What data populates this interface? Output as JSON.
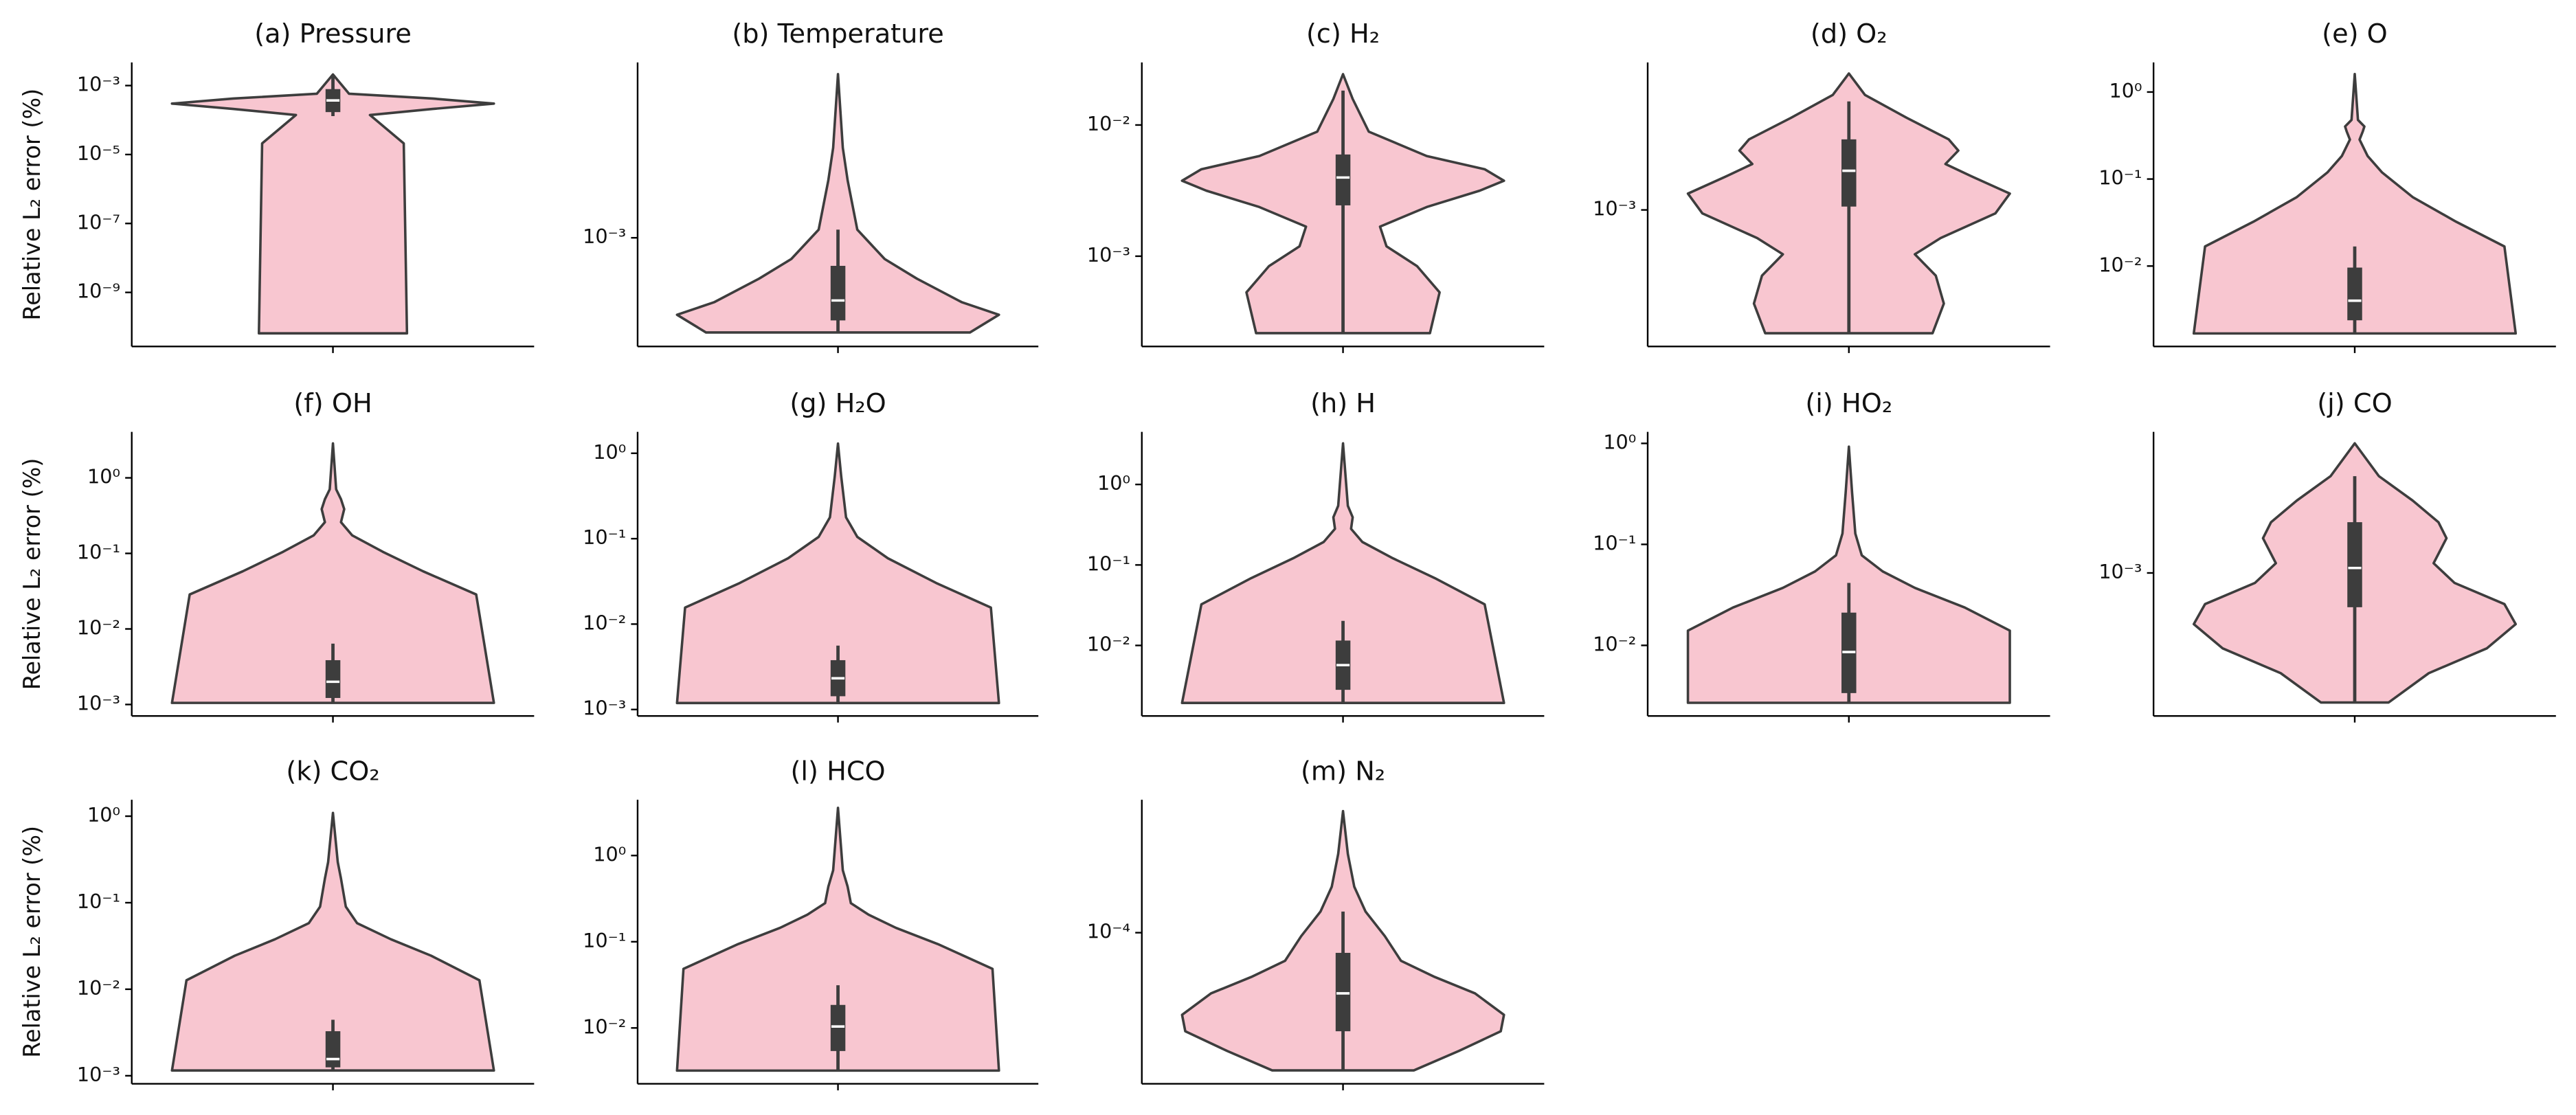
{
  "chart_data": [
    {
      "type": "violin",
      "title": "(a) Pressure",
      "ylabel": "Relative L₂ error (%)",
      "yscale": "log",
      "ylim": [
        2.7e-11,
        0.0047
      ],
      "yticks": [
        {
          "value": 1e-09,
          "label": "10⁻⁹"
        },
        {
          "value": 1e-07,
          "label": "10⁻⁷"
        },
        {
          "value": 1e-05,
          "label": "10⁻⁵"
        },
        {
          "value": 0.001,
          "label": "10⁻³"
        }
      ],
      "color": "#f8c6d0",
      "line_color": "#3d3d3d",
      "violin": {
        "y": [
          6.5e-11,
          2.1e-05,
          0.00014,
          0.00021,
          0.0003,
          0.00042,
          0.00058,
          0.0021
        ],
        "width": [
          0.46,
          0.44,
          0.23,
          0.62,
          1,
          0.62,
          0.1,
          0
        ]
      },
      "box": {
        "q1": 0.00017,
        "median": 0.00037,
        "q3": 0.00079
      },
      "whisker": [
        0.00013,
        0.0021
      ]
    },
    {
      "type": "violin",
      "title": "(b) Temperature",
      "yscale": "log",
      "ylim": [
        0.00028,
        0.0078
      ],
      "yticks": [
        {
          "value": 0.001,
          "label": "10⁻³"
        }
      ],
      "color": "#f8c6d0",
      "line_color": "#3d3d3d",
      "violin": {
        "y": [
          0.00033,
          0.000406,
          0.00047,
          0.00062,
          0.00078,
          0.0011,
          0.00196,
          0.00287,
          0.0068
        ],
        "width": [
          0.82,
          1,
          0.77,
          0.49,
          0.29,
          0.12,
          0.06,
          0.03,
          0
        ]
      },
      "box": {
        "q1": 0.00038,
        "median": 0.00048,
        "q3": 0.00072
      },
      "whisker": [
        0.00033,
        0.0011
      ]
    },
    {
      "type": "violin",
      "title": "(c) H₂",
      "yscale": "log",
      "ylim": [
        0.000205,
        0.03
      ],
      "yticks": [
        {
          "value": 0.001,
          "label": "10⁻³"
        },
        {
          "value": 0.01,
          "label": "10⁻²"
        }
      ],
      "color": "#f8c6d0",
      "line_color": "#3d3d3d",
      "violin": {
        "y": [
          0.000259,
          0.00053,
          0.00084,
          0.00119,
          0.00168,
          0.00237,
          0.00316,
          0.00376,
          0.0046,
          0.0058,
          0.0089,
          0.0158,
          0.0244
        ],
        "width": [
          0.54,
          0.6,
          0.46,
          0.27,
          0.23,
          0.52,
          0.85,
          1,
          0.88,
          0.52,
          0.16,
          0.06,
          0
        ]
      },
      "box": {
        "q1": 0.00244,
        "median": 0.00398,
        "q3": 0.00596
      },
      "whisker": [
        0.000259,
        0.0183
      ]
    },
    {
      "type": "violin",
      "title": "(d) O₂",
      "yscale": "log",
      "ylim": [
        0.000203,
        0.0056
      ],
      "yticks": [
        {
          "value": 0.001,
          "label": "10⁻³"
        }
      ],
      "color": "#f8c6d0",
      "line_color": "#3d3d3d",
      "violin": {
        "y": [
          0.000237,
          0.000335,
          0.000464,
          0.000596,
          0.00072,
          0.00096,
          0.00121,
          0.00147,
          0.00171,
          0.002,
          0.00228,
          0.00293,
          0.00383,
          0.00492
        ],
        "width": [
          0.52,
          0.59,
          0.54,
          0.41,
          0.57,
          0.91,
          1,
          0.77,
          0.6,
          0.68,
          0.62,
          0.36,
          0.1,
          0
        ]
      },
      "box": {
        "q1": 0.00104,
        "median": 0.00158,
        "q3": 0.00228
      },
      "whisker": [
        0.000237,
        0.00355
      ]
    },
    {
      "type": "violin",
      "title": "(e) O",
      "yscale": "log",
      "ylim": [
        0.00119,
        2.19
      ],
      "yticks": [
        {
          "value": 0.01,
          "label": "10⁻²"
        },
        {
          "value": 0.1,
          "label": "10⁻¹"
        },
        {
          "value": 1,
          "label": "10⁰"
        }
      ],
      "color": "#f8c6d0",
      "line_color": "#3d3d3d",
      "violin": {
        "y": [
          0.00168,
          0.0168,
          0.0323,
          0.062,
          0.119,
          0.184,
          0.284,
          0.352,
          0.402,
          0.478,
          1.61
        ],
        "width": [
          1,
          0.93,
          0.63,
          0.36,
          0.17,
          0.08,
          0.03,
          0.05,
          0.06,
          0.02,
          0
        ]
      },
      "box": {
        "q1": 0.00238,
        "median": 0.004,
        "q3": 0.0096
      },
      "whisker": [
        0.00168,
        0.0168
      ]
    },
    {
      "type": "violin",
      "title": "(f) OH",
      "ylabel": "Relative L₂ error (%)",
      "yscale": "log",
      "ylim": [
        0.000705,
        4.06
      ],
      "yticks": [
        {
          "value": 0.001,
          "label": "10⁻³"
        },
        {
          "value": 0.01,
          "label": "10⁻²"
        },
        {
          "value": 0.1,
          "label": "10⁻¹"
        },
        {
          "value": 1,
          "label": "10⁰"
        }
      ],
      "color": "#f8c6d0",
      "line_color": "#3d3d3d",
      "violin": {
        "y": [
          0.00105,
          0.0286,
          0.058,
          0.105,
          0.173,
          0.259,
          0.386,
          0.521,
          0.705,
          2.86
        ],
        "width": [
          1,
          0.89,
          0.56,
          0.31,
          0.12,
          0.05,
          0.07,
          0.05,
          0.02,
          0
        ]
      },
      "box": {
        "q1": 0.00122,
        "median": 0.002,
        "q3": 0.00386
      },
      "whisker": [
        0.00105,
        0.0064
      ]
    },
    {
      "type": "violin",
      "title": "(g) H₂O",
      "yscale": "log",
      "ylim": [
        0.00084,
        1.78
      ],
      "yticks": [
        {
          "value": 0.001,
          "label": "10⁻³"
        },
        {
          "value": 0.01,
          "label": "10⁻²"
        },
        {
          "value": 0.1,
          "label": "10⁻¹"
        },
        {
          "value": 1,
          "label": "10⁰"
        }
      ],
      "color": "#f8c6d0",
      "line_color": "#3d3d3d",
      "violin": {
        "y": [
          0.00119,
          0.0156,
          0.0303,
          0.059,
          0.105,
          0.178,
          0.538,
          1.3
        ],
        "width": [
          1,
          0.95,
          0.61,
          0.31,
          0.12,
          0.05,
          0.02,
          0
        ]
      },
      "box": {
        "q1": 0.00143,
        "median": 0.00232,
        "q3": 0.00378
      },
      "whisker": [
        0.00119,
        0.0056
      ]
    },
    {
      "type": "violin",
      "title": "(h) H",
      "yscale": "log",
      "ylim": [
        0.00133,
        4.5
      ],
      "yticks": [
        {
          "value": 0.01,
          "label": "10⁻²"
        },
        {
          "value": 0.1,
          "label": "10⁻¹"
        },
        {
          "value": 1,
          "label": "10⁰"
        }
      ],
      "color": "#f8c6d0",
      "line_color": "#3d3d3d",
      "violin": {
        "y": [
          0.00193,
          0.0324,
          0.0687,
          0.121,
          0.193,
          0.281,
          0.391,
          0.543,
          3.24
        ],
        "width": [
          1,
          0.88,
          0.57,
          0.31,
          0.12,
          0.05,
          0.06,
          0.03,
          0
        ]
      },
      "box": {
        "q1": 0.00281,
        "median": 0.0057,
        "q3": 0.0115
      },
      "whisker": [
        0.00193,
        0.0202
      ]
    },
    {
      "type": "violin",
      "title": "(i) HO₂",
      "yscale": "log",
      "ylim": [
        0.002,
        1.3
      ],
      "yticks": [
        {
          "value": 0.01,
          "label": "10⁻²"
        },
        {
          "value": 0.1,
          "label": "10⁻¹"
        },
        {
          "value": 1,
          "label": "10⁰"
        }
      ],
      "color": "#f8c6d0",
      "line_color": "#3d3d3d",
      "violin": {
        "y": [
          0.0027,
          0.014,
          0.0237,
          0.0371,
          0.054,
          0.078,
          0.128,
          0.325,
          0.928
        ],
        "width": [
          1,
          1,
          0.72,
          0.41,
          0.21,
          0.08,
          0.04,
          0.02,
          0
        ]
      },
      "box": {
        "q1": 0.00337,
        "median": 0.0086,
        "q3": 0.0211
      },
      "whisker": [
        0.0027,
        0.0415
      ]
    },
    {
      "type": "violin",
      "title": "(j) CO",
      "yscale": "log",
      "ylim": [
        0.000188,
        0.0052
      ],
      "yticks": [
        {
          "value": 0.001,
          "label": "10⁻³"
        }
      ],
      "color": "#f8c6d0",
      "line_color": "#3d3d3d",
      "violin": {
        "y": [
          0.00022,
          0.00031,
          0.000414,
          0.00055,
          0.000695,
          0.00089,
          0.00112,
          0.0015,
          0.00181,
          0.00233,
          0.0031,
          0.00455
        ],
        "width": [
          0.21,
          0.46,
          0.82,
          1,
          0.93,
          0.62,
          0.49,
          0.57,
          0.52,
          0.36,
          0.15,
          0
        ]
      },
      "box": {
        "q1": 0.00067,
        "median": 0.00106,
        "q3": 0.00181
      },
      "whisker": [
        0.00022,
        0.0031
      ]
    },
    {
      "type": "violin",
      "title": "(k) CO₂",
      "ylabel": "Relative L₂ error (%)",
      "yscale": "log",
      "ylim": [
        0.000807,
        1.55
      ],
      "yticks": [
        {
          "value": 0.001,
          "label": "10⁻³"
        },
        {
          "value": 0.01,
          "label": "10⁻²"
        },
        {
          "value": 0.1,
          "label": "10⁻¹"
        },
        {
          "value": 1,
          "label": "10⁰"
        }
      ],
      "color": "#f8c6d0",
      "line_color": "#3d3d3d",
      "violin": {
        "y": [
          0.00115,
          0.0127,
          0.0244,
          0.0378,
          0.058,
          0.09,
          0.19,
          0.294,
          1.09
        ],
        "width": [
          1,
          0.91,
          0.61,
          0.36,
          0.15,
          0.08,
          0.05,
          0.03,
          0
        ]
      },
      "box": {
        "q1": 0.00125,
        "median": 0.00156,
        "q3": 0.00327
      },
      "whisker": [
        0.00115,
        0.00444
      ]
    },
    {
      "type": "violin",
      "title": "(l) HCO",
      "yscale": "log",
      "ylim": [
        0.00225,
        4.44
      ],
      "yticks": [
        {
          "value": 0.01,
          "label": "10⁻²"
        },
        {
          "value": 0.1,
          "label": "10⁻¹"
        },
        {
          "value": 1,
          "label": "10⁰"
        }
      ],
      "color": "#f8c6d0",
      "line_color": "#3d3d3d",
      "violin": {
        "y": [
          0.0032,
          0.0485,
          0.094,
          0.145,
          0.206,
          0.28,
          0.435,
          0.674,
          3.57
        ],
        "width": [
          1,
          0.96,
          0.62,
          0.36,
          0.19,
          0.08,
          0.06,
          0.03,
          0
        ]
      },
      "box": {
        "q1": 0.0054,
        "median": 0.0104,
        "q3": 0.0185
      },
      "whisker": [
        0.0032,
        0.0313
      ]
    },
    {
      "type": "violin",
      "title": "(m) N₂",
      "yscale": "log",
      "ylim": [
        1.71e-05,
        0.000473
      ],
      "yticks": [
        {
          "value": 0.0001,
          "label": "10⁻⁴"
        }
      ],
      "color": "#f8c6d0",
      "line_color": "#3d3d3d",
      "violin": {
        "y": [
          2e-05,
          2.51e-05,
          3.16e-05,
          3.83e-05,
          4.92e-05,
          5.96e-05,
          7.2e-05,
          9.6e-05,
          0.000128,
          0.000171,
          0.000251,
          0.000414
        ],
        "width": [
          0.44,
          0.72,
          0.98,
          1,
          0.82,
          0.57,
          0.36,
          0.26,
          0.14,
          0.07,
          0.03,
          0
        ]
      },
      "box": {
        "q1": 3.16e-05,
        "median": 4.92e-05,
        "q3": 7.9e-05
      },
      "whisker": [
        2e-05,
        0.000128
      ]
    }
  ]
}
